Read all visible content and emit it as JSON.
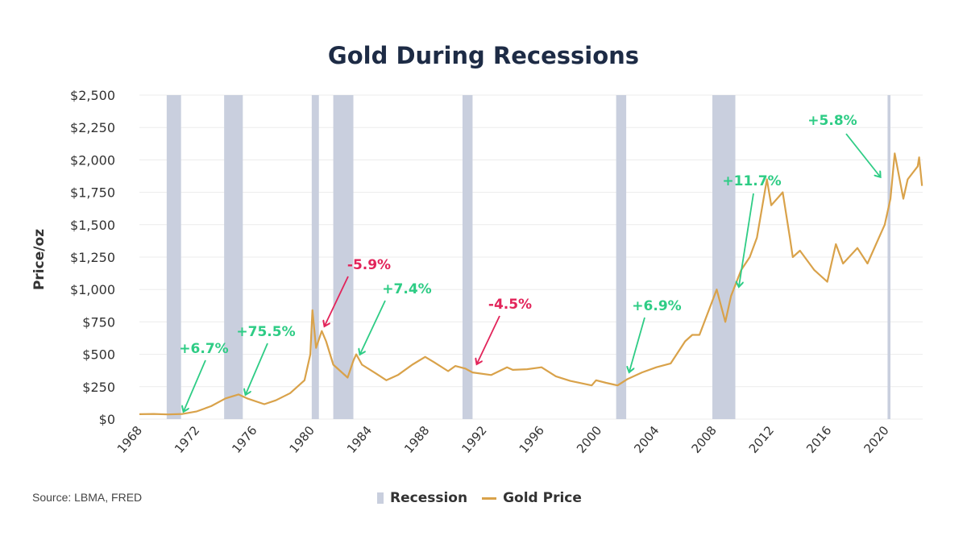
{
  "chart_data": {
    "type": "line",
    "title": "Gold During Recessions",
    "xlabel": "",
    "ylabel": "Price/oz",
    "xlim": [
      1968,
      2022.6
    ],
    "ylim": [
      0,
      2500
    ],
    "yticks": [
      0,
      250,
      500,
      750,
      1000,
      1250,
      1500,
      1750,
      2000,
      2250,
      2500
    ],
    "ytick_labels": [
      "$0",
      "$250",
      "$500",
      "$750",
      "$1,000",
      "$1,250",
      "$1,500",
      "$1,750",
      "$2,000",
      "$2,250",
      "$2,500"
    ],
    "xticks": [
      1968,
      1972,
      1976,
      1980,
      1984,
      1988,
      1992,
      1996,
      2000,
      2004,
      2008,
      2012,
      2016,
      2020
    ],
    "xtick_labels": [
      "1968",
      "1972",
      "1976",
      "1980",
      "1984",
      "1988",
      "1992",
      "1996",
      "2000",
      "2004",
      "2008",
      "2012",
      "2016",
      "2020"
    ],
    "grid": true,
    "legend": {
      "placement": "bottom-center",
      "entries": [
        "Recession",
        "Gold Price"
      ]
    },
    "source": "Source: LBMA, FRED",
    "colors": {
      "gold": "#d9a24a",
      "recession": "#c9cfde",
      "positive": "#2ecc85",
      "negative": "#e2245a",
      "title": "#1d2b45"
    },
    "recessions": [
      [
        1969.9,
        1970.9
      ],
      [
        1973.9,
        1975.2
      ],
      [
        1980.0,
        1980.5
      ],
      [
        1981.5,
        1982.9
      ],
      [
        1990.5,
        1991.2
      ],
      [
        2001.2,
        2001.9
      ],
      [
        2007.9,
        2009.5
      ],
      [
        2020.1,
        2020.3
      ]
    ],
    "series": [
      {
        "name": "Gold Price",
        "x": [
          1968,
          1969,
          1970,
          1971,
          1972,
          1973,
          1974,
          1974.9,
          1975.5,
          1976.7,
          1977.5,
          1978.5,
          1979.5,
          1979.9,
          1980.05,
          1980.3,
          1980.7,
          1981.0,
          1981.5,
          1982.5,
          1982.9,
          1983.1,
          1983.5,
          1984.5,
          1985.2,
          1986,
          1987,
          1987.9,
          1988.5,
          1989.5,
          1990,
          1990.7,
          1991.2,
          1992.5,
          1993.6,
          1994,
          1995,
          1996,
          1997,
          1998,
          1999.5,
          1999.8,
          2000.5,
          2001.3,
          2002,
          2003,
          2004,
          2005,
          2006,
          2006.5,
          2007,
          2008.2,
          2008.8,
          2009.2,
          2009.9,
          2010.5,
          2011,
          2011.7,
          2012,
          2012.8,
          2013.3,
          2013.5,
          2014,
          2015,
          2015.9,
          2016.5,
          2017,
          2018,
          2018.7,
          2019.5,
          2019.9,
          2020.3,
          2020.6,
          2021.2,
          2021.5,
          2022.2,
          2022.3,
          2022.5
        ],
        "y": [
          38,
          40,
          36,
          40,
          60,
          100,
          160,
          190,
          160,
          115,
          145,
          200,
          300,
          500,
          840,
          550,
          680,
          600,
          420,
          320,
          450,
          500,
          420,
          350,
          300,
          340,
          420,
          480,
          440,
          370,
          410,
          390,
          360,
          340,
          400,
          380,
          385,
          400,
          330,
          295,
          260,
          300,
          280,
          260,
          310,
          360,
          400,
          430,
          600,
          650,
          650,
          1000,
          750,
          950,
          1150,
          1250,
          1400,
          1850,
          1650,
          1750,
          1400,
          1250,
          1300,
          1150,
          1060,
          1350,
          1200,
          1320,
          1200,
          1400,
          1500,
          1700,
          2050,
          1700,
          1850,
          1950,
          2020,
          1800
        ]
      }
    ],
    "annotations": [
      {
        "text": "+6.7%",
        "sign": "positive"
      },
      {
        "text": "+75.5%",
        "sign": "positive"
      },
      {
        "text": "-5.9%",
        "sign": "negative"
      },
      {
        "text": "+7.4%",
        "sign": "positive"
      },
      {
        "text": "-4.5%",
        "sign": "negative"
      },
      {
        "text": "+6.9%",
        "sign": "positive"
      },
      {
        "text": "+11.7%",
        "sign": "positive"
      },
      {
        "text": "+5.8%",
        "sign": "positive"
      }
    ]
  }
}
